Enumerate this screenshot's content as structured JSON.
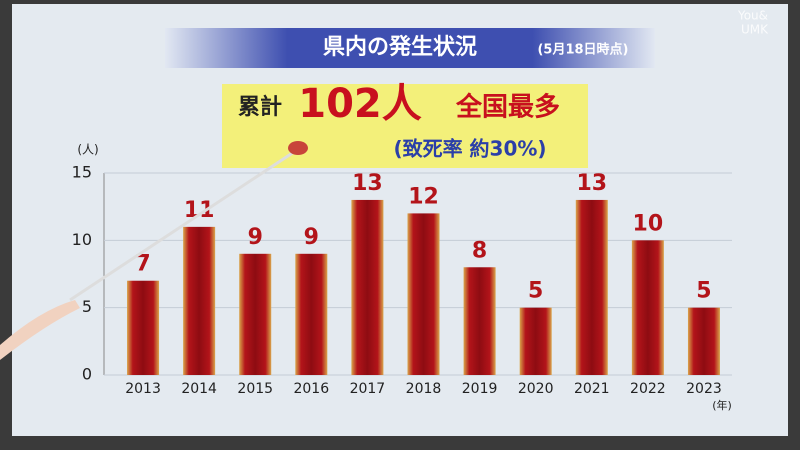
{
  "chart_data": {
    "type": "bar",
    "title": "県内の発生状況",
    "subtitle": "(5月18日時点)",
    "annotations": [
      "累計",
      "102人",
      "全国最多",
      "(致死率 約30%)"
    ],
    "y_label": "(人)",
    "x_label": "(年)",
    "logo": [
      "You&",
      "UMK"
    ],
    "categories": [
      "2013",
      "2014",
      "2015",
      "2016",
      "2017",
      "2018",
      "2019",
      "2020",
      "2021",
      "2022",
      "2023"
    ],
    "values": [
      7,
      11,
      9,
      9,
      13,
      12,
      8,
      5,
      13,
      10,
      5
    ],
    "color": "#b3141a",
    "ylim": [
      0,
      15
    ],
    "yticks": [
      0,
      5,
      10,
      15
    ],
    "grid": true
  }
}
